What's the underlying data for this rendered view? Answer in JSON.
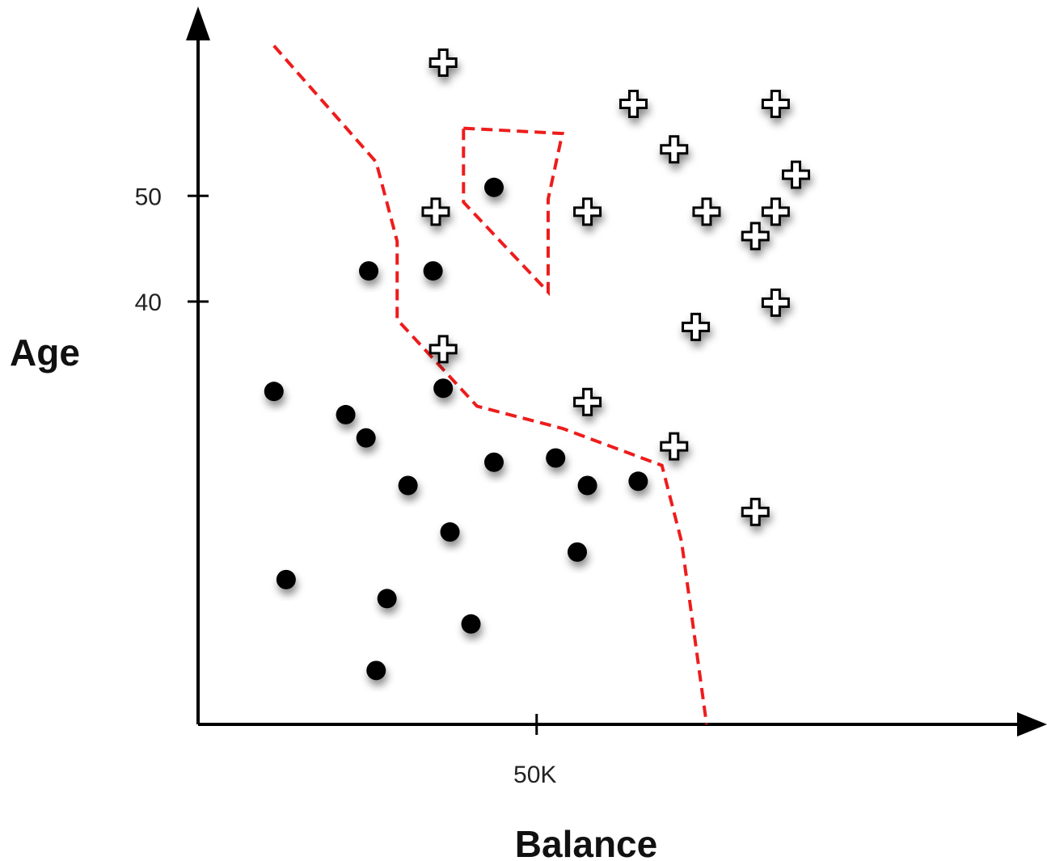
{
  "chart_data": {
    "type": "scatter",
    "title": "",
    "xlabel": "Balance",
    "ylabel": "Age",
    "xlim": [
      0,
      120
    ],
    "ylim": [
      0,
      67
    ],
    "grid": false,
    "x_ticks": [
      {
        "value": 50,
        "label": "50K"
      }
    ],
    "y_ticks": [
      {
        "value": 40,
        "label": "40"
      },
      {
        "value": 50,
        "label": "50"
      }
    ],
    "series": [
      {
        "marker": "filled-circle",
        "color": "#000000",
        "points": [
          [
            11.2,
            31.5
          ],
          [
            13.0,
            13.7
          ],
          [
            21.8,
            29.3
          ],
          [
            24.8,
            27.1
          ],
          [
            26.3,
            5.1
          ],
          [
            27.9,
            11.9
          ],
          [
            31.0,
            22.6
          ],
          [
            34.7,
            42.9
          ],
          [
            36.2,
            31.8
          ],
          [
            37.2,
            18.2
          ],
          [
            40.3,
            9.5
          ],
          [
            43.7,
            50.8
          ],
          [
            43.7,
            24.8
          ],
          [
            52.8,
            25.2
          ],
          [
            56.0,
            16.3
          ],
          [
            57.5,
            22.6
          ],
          [
            65.0,
            23.0
          ],
          [
            25.2,
            42.9
          ]
        ]
      },
      {
        "marker": "plus",
        "color": "#000000",
        "points": [
          [
            36.2,
            62.6
          ],
          [
            35.1,
            48.5
          ],
          [
            36.2,
            35.5
          ],
          [
            64.3,
            58.7
          ],
          [
            57.5,
            48.5
          ],
          [
            57.5,
            30.5
          ],
          [
            70.3,
            54.4
          ],
          [
            70.3,
            26.3
          ],
          [
            75.1,
            48.5
          ],
          [
            73.5,
            37.6
          ],
          [
            85.3,
            58.7
          ],
          [
            85.3,
            48.5
          ],
          [
            85.3,
            39.9
          ],
          [
            82.3,
            46.2
          ],
          [
            88.3,
            52.0
          ],
          [
            82.3,
            20.1
          ]
        ]
      }
    ],
    "annotations": [
      {
        "type": "dashed-boundary",
        "color": "#ee1c1c",
        "points": [
          [
            11.2,
            64.2
          ],
          [
            26.3,
            53.2
          ],
          [
            29.4,
            45.7
          ],
          [
            29.4,
            38.3
          ],
          [
            41.2,
            30.1
          ],
          [
            53.8,
            28.0
          ],
          [
            68.5,
            24.5
          ],
          [
            71.4,
            17.3
          ],
          [
            75.1,
            0.0
          ]
        ]
      },
      {
        "type": "dashed-region",
        "color": "#ee1c1c",
        "points": [
          [
            39.2,
            56.4
          ],
          [
            53.8,
            55.9
          ],
          [
            51.7,
            49.7
          ],
          [
            51.7,
            40.9
          ],
          [
            39.2,
            49.4
          ]
        ]
      }
    ]
  }
}
